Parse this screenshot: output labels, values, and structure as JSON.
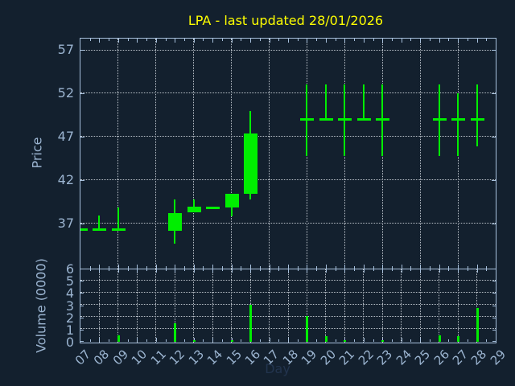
{
  "title": "LPA - last updated 28/01/2026",
  "colors": {
    "background": "#13202e",
    "axis": "#a7c0dc",
    "tick_label": "#9bb4d0",
    "grid": "#b9c0c8",
    "title": "#ffff00",
    "candle": "#00ee00",
    "day_label": "#22344e"
  },
  "price_panel": {
    "ylabel": "Price",
    "yticks": [
      37,
      42,
      47,
      52,
      57
    ],
    "ymin": 31.8,
    "ymax": 58.3,
    "grid_days": [
      9,
      11,
      13,
      15,
      17,
      19,
      21,
      23,
      25,
      27,
      29
    ]
  },
  "volume_panel": {
    "ylabel": "Volume (0000)",
    "yticks": [
      0,
      1,
      2,
      3,
      4,
      5,
      6
    ],
    "ymin": 0,
    "ymax": 6,
    "grid_yticks": [
      1,
      2,
      3,
      4,
      5
    ],
    "grid_days": [
      8,
      9,
      10,
      11,
      12,
      13,
      14,
      15,
      16,
      17,
      18,
      19,
      20,
      21,
      22,
      23,
      24,
      25,
      26,
      27,
      28,
      29
    ]
  },
  "x_axis": {
    "label": "Day",
    "tick_labels": [
      "07",
      "08",
      "09",
      "10",
      "11",
      "12",
      "13",
      "14",
      "15",
      "16",
      "17",
      "18",
      "19",
      "20",
      "21",
      "22",
      "23",
      "24",
      "25",
      "26",
      "27",
      "28",
      "29"
    ],
    "dmin": 7,
    "dmax": 29
  },
  "chart_data": {
    "type": "candlestick",
    "title": "LPA - last updated 28/01/2026",
    "xlabel": "Day",
    "price_ylabel": "Price",
    "volume_ylabel": "Volume (0000)",
    "price_ylim": [
      31.8,
      58.3
    ],
    "volume_ylim": [
      0,
      6
    ],
    "grid": true,
    "ohlc": [
      {
        "day": 7,
        "open": 36.3,
        "high": 36.3,
        "low": 36.3,
        "close": 36.3
      },
      {
        "day": 8,
        "open": 36.3,
        "high": 37.9,
        "low": 36.3,
        "close": 36.3
      },
      {
        "day": 9,
        "open": 36.3,
        "high": 38.8,
        "low": 36.3,
        "close": 36.3
      },
      {
        "day": 12,
        "open": 36.2,
        "high": 39.8,
        "low": 34.7,
        "close": 38.2
      },
      {
        "day": 13,
        "open": 38.3,
        "high": 39.8,
        "low": 38.3,
        "close": 38.9
      },
      {
        "day": 14,
        "open": 38.8,
        "high": 38.8,
        "low": 38.8,
        "close": 38.8
      },
      {
        "day": 15,
        "open": 38.8,
        "high": 40.4,
        "low": 37.8,
        "close": 40.4
      },
      {
        "day": 16,
        "open": 40.4,
        "high": 50.0,
        "low": 39.8,
        "close": 47.4
      },
      {
        "day": 19,
        "open": 49.0,
        "high": 53.0,
        "low": 44.8,
        "close": 49.0
      },
      {
        "day": 20,
        "open": 49.0,
        "high": 53.0,
        "low": 49.0,
        "close": 49.0
      },
      {
        "day": 21,
        "open": 49.0,
        "high": 53.0,
        "low": 44.8,
        "close": 49.0
      },
      {
        "day": 22,
        "open": 49.0,
        "high": 53.0,
        "low": 49.0,
        "close": 49.0
      },
      {
        "day": 23,
        "open": 49.0,
        "high": 53.0,
        "low": 44.8,
        "close": 49.0
      },
      {
        "day": 26,
        "open": 49.0,
        "high": 53.0,
        "low": 44.8,
        "close": 49.0
      },
      {
        "day": 27,
        "open": 49.0,
        "high": 52.0,
        "low": 44.8,
        "close": 49.0
      },
      {
        "day": 28,
        "open": 49.0,
        "high": 53.0,
        "low": 45.9,
        "close": 49.0
      }
    ],
    "volume_0000": [
      {
        "day": 9,
        "value": 0.55
      },
      {
        "day": 12,
        "value": 1.5
      },
      {
        "day": 13,
        "value": 0.15
      },
      {
        "day": 15,
        "value": 0.12
      },
      {
        "day": 16,
        "value": 3.05
      },
      {
        "day": 19,
        "value": 2.1
      },
      {
        "day": 20,
        "value": 0.45
      },
      {
        "day": 21,
        "value": 0.12
      },
      {
        "day": 23,
        "value": 0.12
      },
      {
        "day": 26,
        "value": 0.55
      },
      {
        "day": 27,
        "value": 0.45
      },
      {
        "day": 28,
        "value": 2.75
      }
    ]
  }
}
